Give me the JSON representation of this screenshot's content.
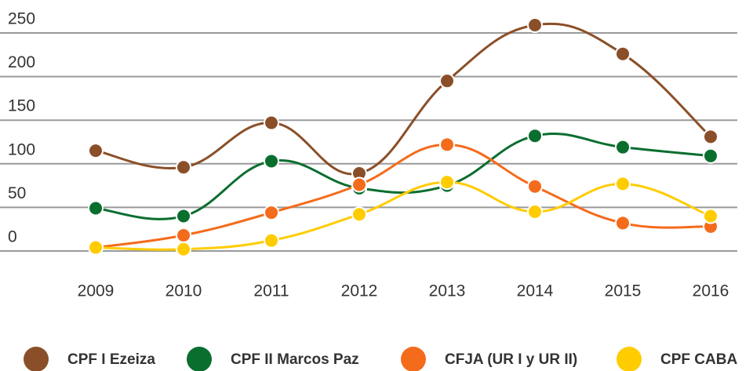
{
  "chart_data": {
    "type": "line",
    "categories": [
      "2009",
      "2010",
      "2011",
      "2012",
      "2013",
      "2014",
      "2015",
      "2016"
    ],
    "ylim": [
      0,
      250
    ],
    "yticks": [
      0,
      50,
      100,
      150,
      200,
      250
    ],
    "grid": true,
    "legend": "bottom",
    "series": [
      {
        "name": "CPF I Ezeiza",
        "color": "#8a4f28",
        "values": [
          115,
          96,
          147,
          89,
          195,
          259,
          226,
          131
        ]
      },
      {
        "name": "CPF II Marcos Paz",
        "color": "#0a6e2f",
        "values": [
          49,
          40,
          103,
          72,
          75,
          132,
          119,
          109
        ]
      },
      {
        "name": "CFJA (UR I y UR II)",
        "color": "#f46b1c",
        "values": [
          4,
          18,
          44,
          76,
          122,
          74,
          32,
          28
        ]
      },
      {
        "name": "CPF CABA",
        "color": "#ffcc00",
        "values": [
          4,
          2,
          12,
          42,
          79,
          45,
          77,
          40
        ]
      }
    ]
  }
}
